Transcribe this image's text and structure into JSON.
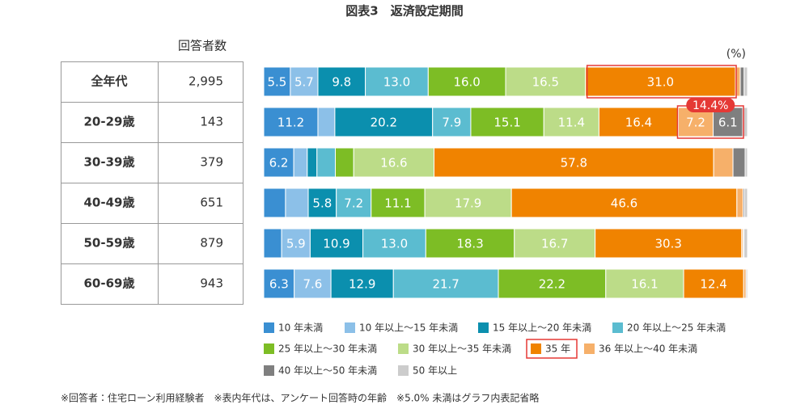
{
  "chart_data": {
    "type": "stacked-bar-horizontal",
    "title": "図表3　返済設定期間",
    "unit_label": "(%)",
    "table_header": "回答者数",
    "categories": [
      "全年代",
      "20-29歳",
      "30-39歳",
      "40-49歳",
      "50-59歳",
      "60-69歳"
    ],
    "respondents": [
      "2,995",
      "143",
      "379",
      "651",
      "879",
      "943"
    ],
    "xlim": [
      0,
      100
    ],
    "series": [
      {
        "name": "10 年未満",
        "color": "#3a8fd2",
        "values": [
          5.5,
          11.2,
          6.2,
          4.5,
          3.7,
          6.3
        ],
        "value_labels": [
          "5.5",
          "11.2",
          "6.2",
          null,
          null,
          "6.3"
        ]
      },
      {
        "name": "10 年以上～15 年未満",
        "color": "#8cc0e8",
        "values": [
          5.7,
          3.5,
          2.8,
          4.7,
          5.9,
          7.6
        ],
        "value_labels": [
          "5.7",
          null,
          null,
          null,
          "5.9",
          "7.6"
        ]
      },
      {
        "name": "15 年以上～20 年未満",
        "color": "#0b8fae",
        "values": [
          9.8,
          20.2,
          2.0,
          5.8,
          10.9,
          12.9
        ],
        "value_labels": [
          "9.8",
          "20.2",
          null,
          "5.8",
          "10.9",
          "12.9"
        ]
      },
      {
        "name": "20 年以上～25 年未満",
        "color": "#5bbcd0",
        "values": [
          13.0,
          7.9,
          3.8,
          7.2,
          13.0,
          21.7
        ],
        "value_labels": [
          "13.0",
          "7.9",
          null,
          "7.2",
          "13.0",
          "21.7"
        ]
      },
      {
        "name": "25 年以上～30 年未満",
        "color": "#7dbd25",
        "values": [
          16.0,
          15.1,
          3.8,
          11.1,
          18.3,
          22.2
        ],
        "value_labels": [
          "16.0",
          "15.1",
          null,
          "11.1",
          "18.3",
          "22.2"
        ]
      },
      {
        "name": "30 年以上～35 年未満",
        "color": "#bcdc88",
        "values": [
          16.5,
          11.4,
          16.6,
          17.9,
          16.7,
          16.1
        ],
        "value_labels": [
          "16.5",
          "11.4",
          "16.6",
          "17.9",
          "16.7",
          "16.1"
        ]
      },
      {
        "name": "35 年",
        "color": "#f08300",
        "values": [
          31.0,
          16.4,
          57.8,
          46.6,
          30.3,
          12.4
        ],
        "value_labels": [
          "31.0",
          "16.4",
          "57.8",
          "46.6",
          "30.3",
          "12.4"
        ]
      },
      {
        "name": "36 年以上～40 年未満",
        "color": "#f6b06a",
        "values": [
          1.0,
          7.2,
          4.0,
          1.3,
          0.3,
          0.5
        ],
        "value_labels": [
          null,
          "7.2",
          null,
          null,
          null,
          null
        ]
      },
      {
        "name": "40 年以上～50 年未満",
        "color": "#7f7f7f",
        "values": [
          0.8,
          6.1,
          2.5,
          0.3,
          0.2,
          0
        ],
        "value_labels": [
          null,
          "6.1",
          null,
          null,
          null,
          null
        ]
      },
      {
        "name": "50 年以上",
        "color": "#cccccc",
        "values": [
          0.7,
          1.0,
          0.5,
          0.6,
          0.7,
          0.3
        ],
        "value_labels": [
          null,
          null,
          null,
          null,
          null,
          null
        ]
      }
    ],
    "callout": "14.4%",
    "footnote": "※回答者：住宅ローン利用経験者　※表内年代は、アンケート回答時の年齢　※5.0% 未満はグラフ内表記省略"
  }
}
